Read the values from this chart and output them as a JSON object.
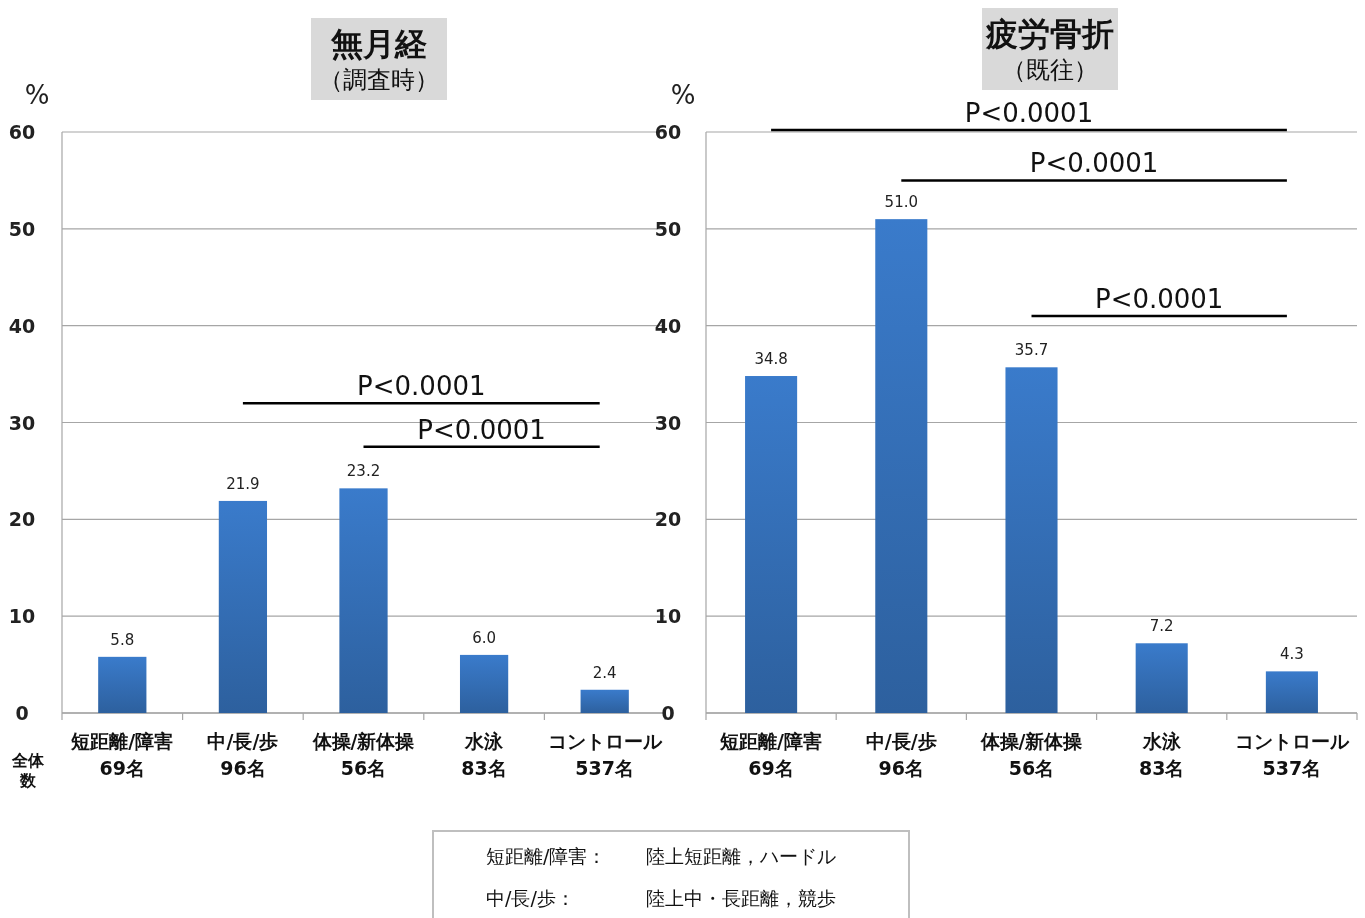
{
  "chart_data": [
    {
      "type": "bar",
      "title": "無月経",
      "subtitle": "（調査時）",
      "ylabel": "%",
      "categories": [
        "短距離/障害\n69名",
        "中/長/歩\n96名",
        "体操/新体操\n56名",
        "水泳\n83名",
        "コントロール\n537名"
      ],
      "values": [
        5.8,
        21.9,
        23.2,
        6.0,
        2.4
      ],
      "color": "#3a7bcb",
      "ylim": [
        0,
        60
      ],
      "yticks": [
        0,
        10,
        20,
        30,
        40,
        50,
        60
      ],
      "grid": "y",
      "data_labels": true,
      "value_labels": [
        "5.8",
        "21.9",
        "23.2",
        "6.0",
        "2.4"
      ],
      "annotations": [
        "P<0.0001",
        "P<0.0001",
        "全体数"
      ]
    },
    {
      "type": "bar",
      "title": "疲労骨折",
      "subtitle": "（既往）",
      "ylabel": "%",
      "categories": [
        "短距離/障害\n69名",
        "中/長/歩\n96名",
        "体操/新体操\n56名",
        "水泳\n83名",
        "コントロール\n537名"
      ],
      "values": [
        34.8,
        51.0,
        35.7,
        7.2,
        4.3
      ],
      "color": "#3a7bcb",
      "ylim": [
        0,
        60
      ],
      "yticks": [
        0,
        10,
        20,
        30,
        40,
        50,
        60
      ],
      "grid": "y",
      "data_labels": true,
      "value_labels": [
        "34.8",
        "51.0",
        "35.7",
        "7.2",
        "4.3"
      ],
      "annotations": [
        "P<0.0001",
        "P<0.0001",
        "P<0.0001"
      ]
    },
    {
      "type": "other",
      "annotations": [
        "短距離/障害：",
        "陸上短距離，ハードル",
        "中/長/歩：",
        "陸上中・長距離，競歩"
      ]
    }
  ]
}
